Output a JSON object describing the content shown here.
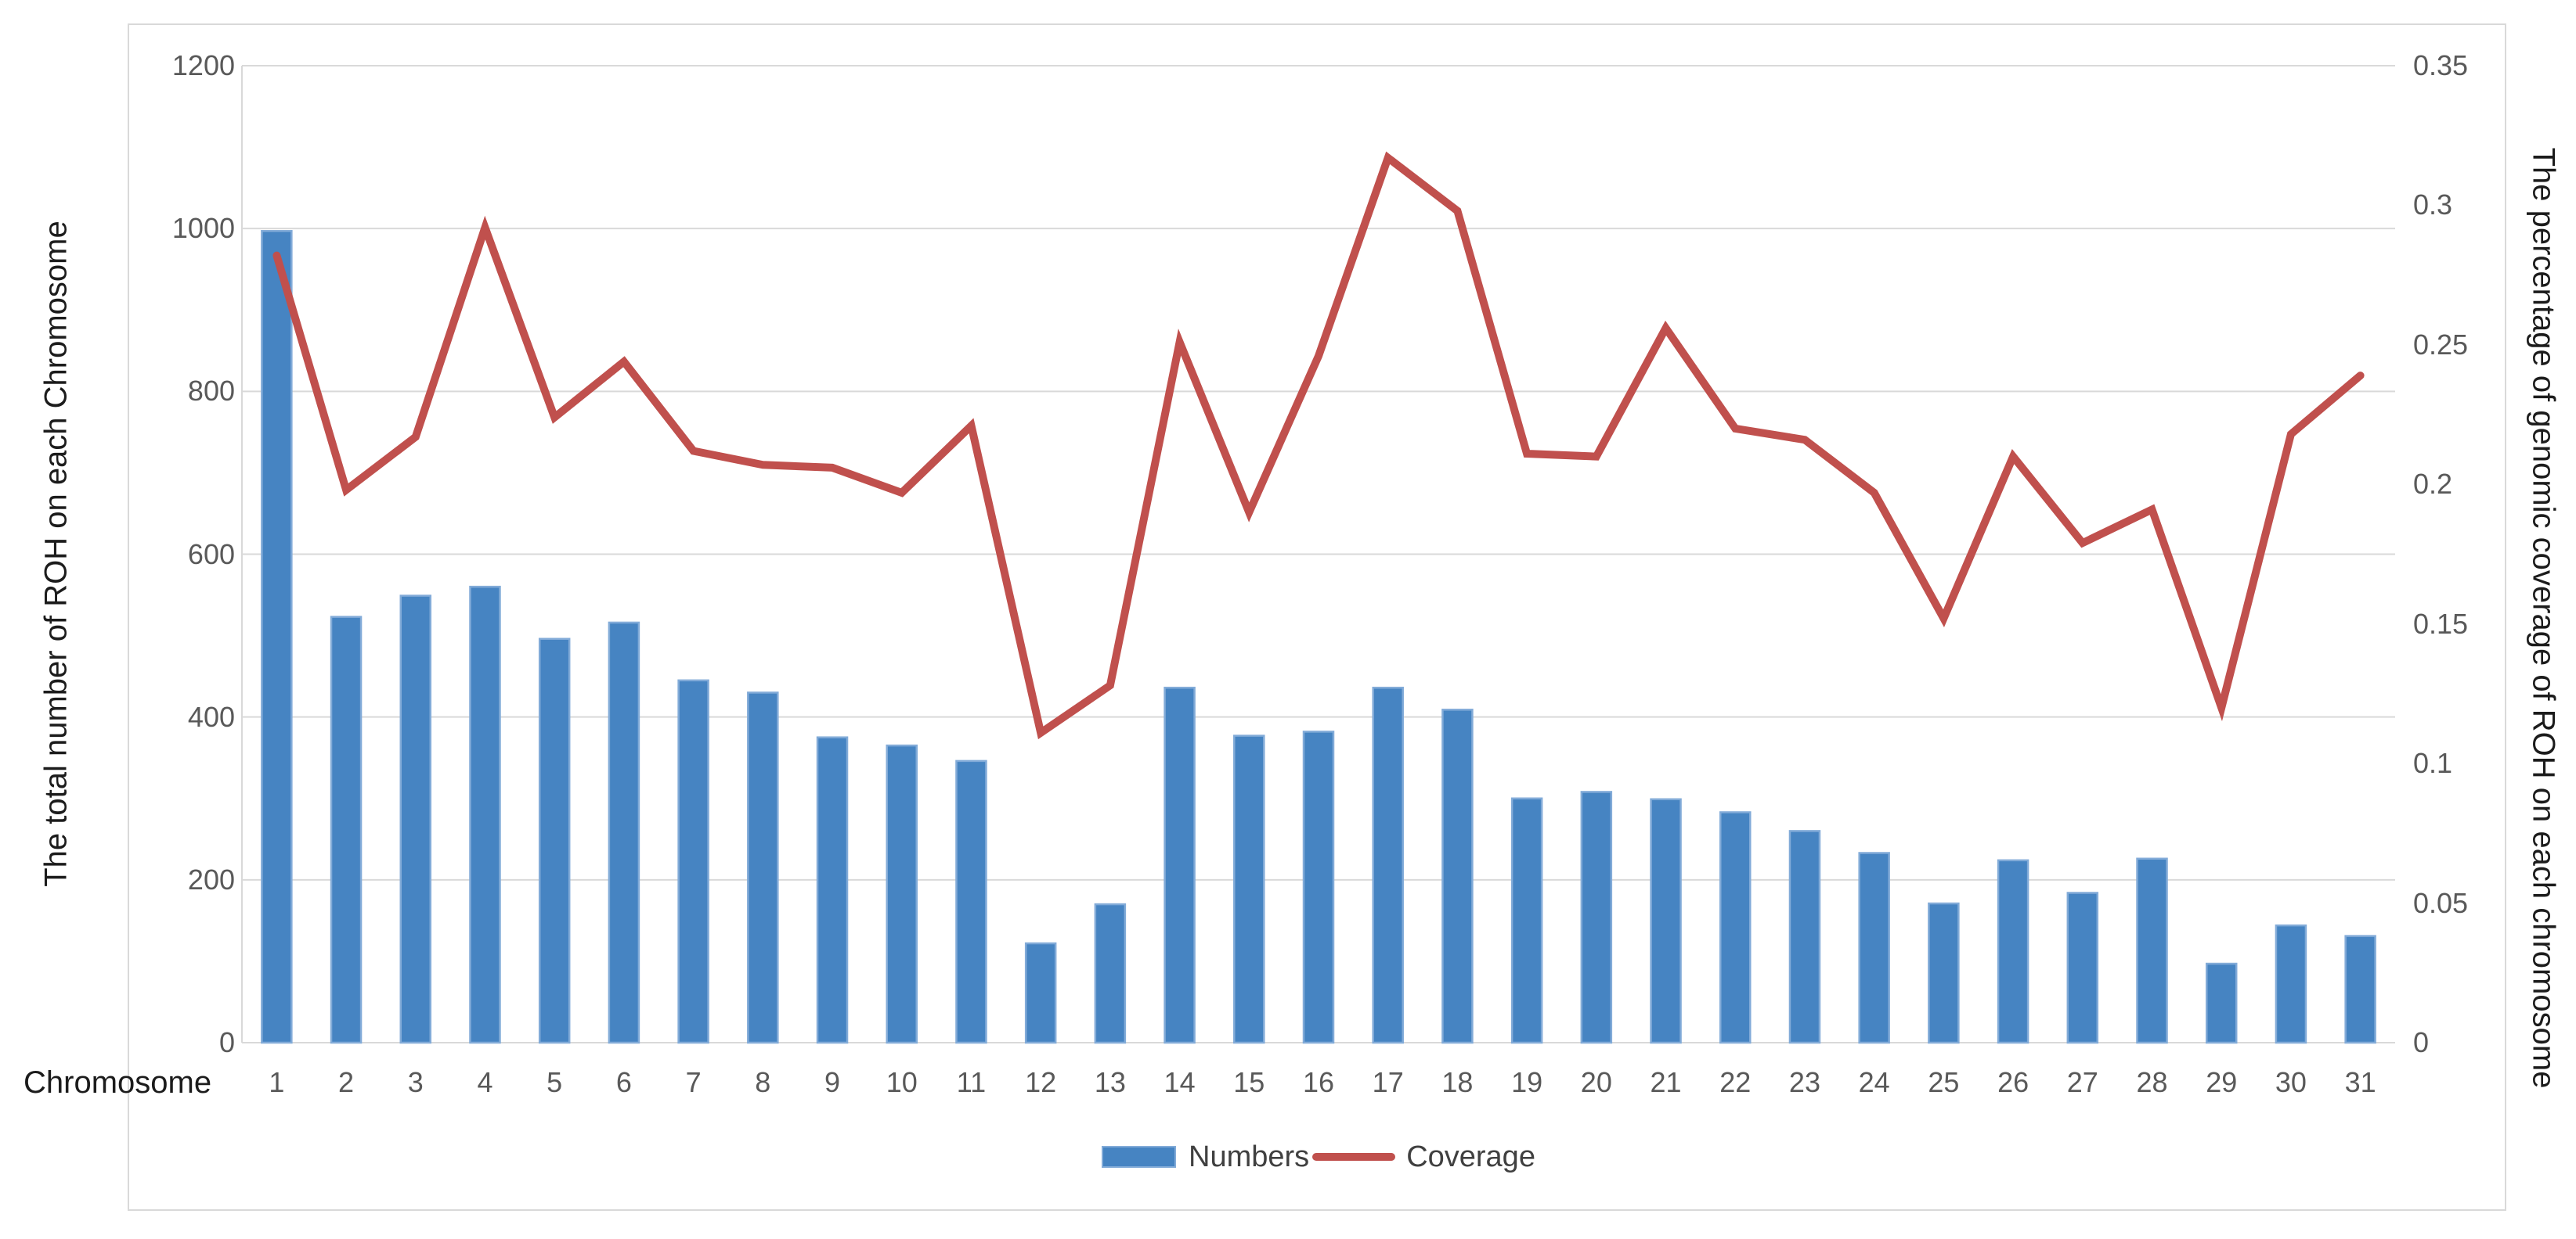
{
  "chart_data": {
    "type": "bar+line",
    "title": "",
    "categories": [
      "1",
      "2",
      "3",
      "4",
      "5",
      "6",
      "7",
      "8",
      "9",
      "10",
      "11",
      "12",
      "13",
      "14",
      "15",
      "16",
      "17",
      "18",
      "19",
      "20",
      "21",
      "22",
      "23",
      "24",
      "25",
      "26",
      "27",
      "28",
      "29",
      "30",
      "31"
    ],
    "series": [
      {
        "name": "Numbers",
        "type": "bar",
        "y_axis": "left",
        "values": [
          997,
          523,
          549,
          560,
          496,
          516,
          445,
          430,
          375,
          365,
          346,
          122,
          170,
          436,
          377,
          382,
          436,
          409,
          300,
          308,
          299,
          283,
          260,
          233,
          171,
          224,
          184,
          226,
          97,
          144,
          131
        ]
      },
      {
        "name": "Coverage",
        "type": "line",
        "y_axis": "right",
        "values": [
          0.282,
          0.198,
          0.217,
          0.292,
          0.224,
          0.244,
          0.212,
          0.207,
          0.206,
          0.197,
          0.221,
          0.111,
          0.128,
          0.251,
          0.19,
          0.246,
          0.317,
          0.298,
          0.211,
          0.21,
          0.256,
          0.22,
          0.216,
          0.197,
          0.152,
          0.21,
          0.179,
          0.191,
          0.12,
          0.218,
          0.239
        ]
      }
    ],
    "left_axis": {
      "title": "The total number of ROH on each Chromosome",
      "min": 0,
      "max": 1200,
      "tick_interval": 200,
      "tick_labels": [
        "0",
        "200",
        "400",
        "600",
        "800",
        "1000",
        "1200"
      ]
    },
    "right_axis": {
      "title": "The percentage of genomic coverage of ROH on each chromosome",
      "min": 0,
      "max": 0.35,
      "tick_interval": 0.05,
      "tick_labels": [
        "0",
        "0.05",
        "0.1",
        "0.15",
        "0.2",
        "0.25",
        "0.3",
        "0.35"
      ]
    },
    "x_axis": {
      "title": "Chromosome",
      "tick_labels": [
        "1",
        "2",
        "3",
        "4",
        "5",
        "6",
        "7",
        "8",
        "9",
        "10",
        "11",
        "12",
        "13",
        "14",
        "15",
        "16",
        "17",
        "18",
        "19",
        "20",
        "21",
        "22",
        "23",
        "24",
        "25",
        "26",
        "27",
        "28",
        "29",
        "30",
        "31"
      ]
    },
    "legend": {
      "position": "bottom",
      "entries": [
        "Numbers",
        "Coverage"
      ],
      "numbers_label": "Numbers",
      "coverage_label": "Coverage"
    },
    "grid": "horizontal",
    "colors": {
      "bar": "#4684c2",
      "bar_edge": "#82abd8",
      "line": "#c0504d",
      "grid": "#d9d9d9",
      "axis_line": "#d9d9d9",
      "tick_text": "#595959",
      "title_text": "#1c1c1c",
      "border": "#d9d9d9"
    }
  }
}
